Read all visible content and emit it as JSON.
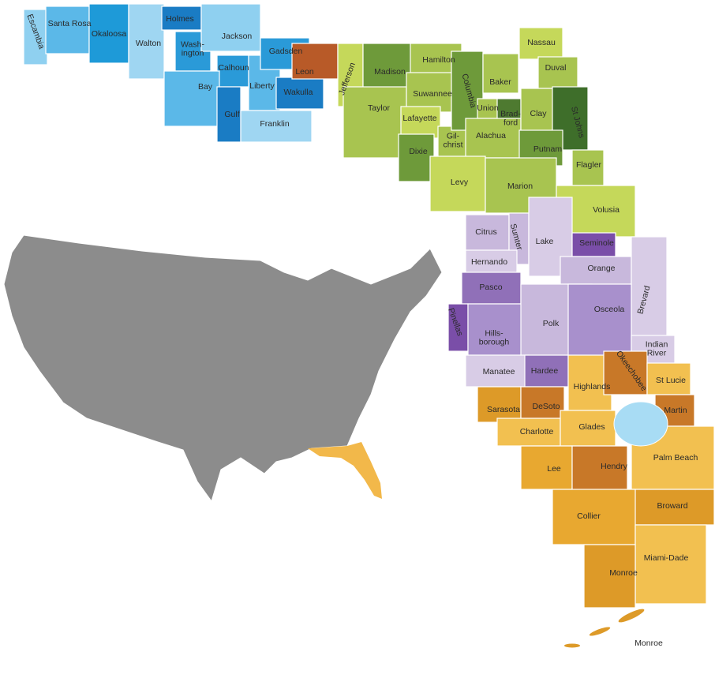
{
  "counties": [
    {
      "name": "Escambia",
      "color": "#8fd0f0"
    },
    {
      "name": "Santa Rosa",
      "color": "#5bb8e8"
    },
    {
      "name": "Okaloosa",
      "color": "#1e9ad8"
    },
    {
      "name": "Walton",
      "color": "#9fd6f2"
    },
    {
      "name": "Holmes",
      "color": "#1a7cc4"
    },
    {
      "name": "Wash-\nington",
      "color": "#2a9ad8"
    },
    {
      "name": "Jackson",
      "color": "#8fd0f0"
    },
    {
      "name": "Calhoun",
      "color": "#2a9ad8"
    },
    {
      "name": "Bay",
      "color": "#5bb8e8"
    },
    {
      "name": "Gulf",
      "color": "#1a7cc4"
    },
    {
      "name": "Liberty",
      "color": "#5bb8e8"
    },
    {
      "name": "Gadsden",
      "color": "#2a9ad8"
    },
    {
      "name": "Franklin",
      "color": "#9fd6f2"
    },
    {
      "name": "Wakulla",
      "color": "#1a7cc4"
    },
    {
      "name": "Leon",
      "color": "#b85a28"
    },
    {
      "name": "Jefferson",
      "color": "#c5d85a"
    },
    {
      "name": "Madison",
      "color": "#6e9a3a"
    },
    {
      "name": "Taylor",
      "color": "#a8c450"
    },
    {
      "name": "Hamilton",
      "color": "#a8c450"
    },
    {
      "name": "Suwannee",
      "color": "#a8c450"
    },
    {
      "name": "Lafayette",
      "color": "#c5d85a"
    },
    {
      "name": "Dixie",
      "color": "#6e9a3a"
    },
    {
      "name": "Gil-\nchrist",
      "color": "#a8c450"
    },
    {
      "name": "Columbia",
      "color": "#6e9a3a"
    },
    {
      "name": "Union",
      "color": "#a8c450"
    },
    {
      "name": "Baker",
      "color": "#a8c450"
    },
    {
      "name": "Brad-\nford",
      "color": "#4e7a30"
    },
    {
      "name": "Alachua",
      "color": "#a8c450"
    },
    {
      "name": "Nassau",
      "color": "#c5d85a"
    },
    {
      "name": "Duval",
      "color": "#a8c450"
    },
    {
      "name": "Clay",
      "color": "#a8c450"
    },
    {
      "name": "St Johns",
      "color": "#3e6e2a"
    },
    {
      "name": "Putnam",
      "color": "#6e9a3a"
    },
    {
      "name": "Flagler",
      "color": "#a8c450"
    },
    {
      "name": "Levy",
      "color": "#c5d85a"
    },
    {
      "name": "Marion",
      "color": "#a8c450"
    },
    {
      "name": "Volusia",
      "color": "#c5d85a"
    },
    {
      "name": "Citrus",
      "color": "#c8b8dc"
    },
    {
      "name": "Sumter",
      "color": "#c8b8dc"
    },
    {
      "name": "Lake",
      "color": "#d8cce6"
    },
    {
      "name": "Seminole",
      "color": "#7a4ea8"
    },
    {
      "name": "Hernando",
      "color": "#d8cce6"
    },
    {
      "name": "Orange",
      "color": "#c8b8dc"
    },
    {
      "name": "Brevard",
      "color": "#d8cce6"
    },
    {
      "name": "Pasco",
      "color": "#9070b8"
    },
    {
      "name": "Pinellas",
      "color": "#7a4ea8"
    },
    {
      "name": "Hills-\nborough",
      "color": "#a890cc"
    },
    {
      "name": "Polk",
      "color": "#c8b8dc"
    },
    {
      "name": "Osceola",
      "color": "#a890cc"
    },
    {
      "name": "Indian\nRiver",
      "color": "#d8cce6"
    },
    {
      "name": "Manatee",
      "color": "#d8cce6"
    },
    {
      "name": "Hardee",
      "color": "#9070b8"
    },
    {
      "name": "Highlands",
      "color": "#f2c050"
    },
    {
      "name": "Okeechobee",
      "color": "#c87828"
    },
    {
      "name": "St Lucie",
      "color": "#f2c050"
    },
    {
      "name": "Sarasota",
      "color": "#dd9a28"
    },
    {
      "name": "DeSoto",
      "color": "#c87828"
    },
    {
      "name": "Martin",
      "color": "#c87828"
    },
    {
      "name": "Charlotte",
      "color": "#f2c050"
    },
    {
      "name": "Glades",
      "color": "#f2c050"
    },
    {
      "name": "Palm Beach",
      "color": "#f2c050"
    },
    {
      "name": "Lee",
      "color": "#e8a830"
    },
    {
      "name": "Hendry",
      "color": "#c87828"
    },
    {
      "name": "Broward",
      "color": "#dd9a28"
    },
    {
      "name": "Collier",
      "color": "#e8a830"
    },
    {
      "name": "Miami-Dade",
      "color": "#f2c050"
    },
    {
      "name": "Monroe",
      "color": "#dd9a28"
    },
    {
      "name": "Monroe",
      "color": "#dd9a28"
    }
  ]
}
